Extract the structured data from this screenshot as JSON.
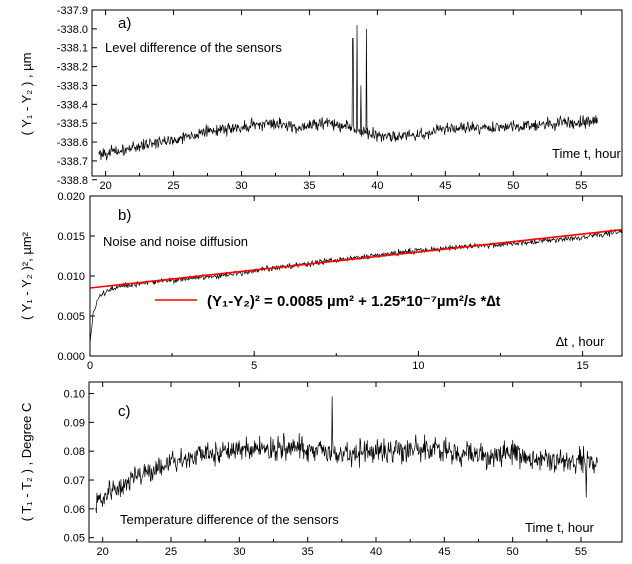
{
  "chart_data": [
    {
      "type": "line",
      "panel_label": "a)",
      "annotation": "Level difference of the sensors",
      "ylabel": "( Y₁ - Y₂ ) , µm",
      "xlabel": "Time  t, hour",
      "xlim": [
        19,
        58
      ],
      "ylim": [
        -338.78,
        -337.9
      ],
      "xticks": [
        20,
        25,
        30,
        35,
        40,
        45,
        50,
        55
      ],
      "yticks": [
        -337.9,
        -338.0,
        -338.1,
        -338.2,
        -338.3,
        -338.4,
        -338.5,
        -338.6,
        -338.7,
        -338.8
      ],
      "ytick_labels": [
        "-337.9",
        "-338.0",
        "-338.1",
        "-338.2",
        "-338.3",
        "-338.4",
        "-338.5",
        "-338.6",
        "-338.7",
        "-338.8"
      ],
      "series": [
        {
          "color": "#000000",
          "x_range": [
            19.5,
            56.2
          ],
          "trend": {
            "x": [
              19.5,
              21,
              23,
              25,
              27,
              29,
              30,
              32,
              34,
              36,
              37,
              38,
              39,
              40,
              41,
              43,
              45,
              48,
              50,
              53,
              56.2
            ],
            "y": [
              -338.66,
              -338.65,
              -338.61,
              -338.59,
              -338.55,
              -338.53,
              -338.52,
              -338.5,
              -338.52,
              -338.5,
              -338.5,
              -338.52,
              -338.55,
              -338.56,
              -338.57,
              -338.56,
              -338.53,
              -338.52,
              -338.52,
              -338.5,
              -338.49
            ]
          },
          "noise_amplitude": 0.032,
          "spikes": [
            {
              "x": 38.2,
              "y": -338.05
            },
            {
              "x": 38.5,
              "y": -337.98
            },
            {
              "x": 38.8,
              "y": -338.3
            },
            {
              "x": 39.2,
              "y": -338.0
            }
          ]
        }
      ]
    },
    {
      "type": "line",
      "panel_label": "b)",
      "annotation": "Noise and noise diffusion",
      "ylabel": "( Y₁ - Y₂ )², µm²",
      "xlabel": "∆t , hour",
      "xlim": [
        0,
        16.2
      ],
      "ylim": [
        0,
        0.02
      ],
      "xticks": [
        0,
        5,
        10,
        15
      ],
      "yticks": [
        0,
        0.005,
        0.01,
        0.015,
        0.02
      ],
      "ytick_labels": [
        "0.000",
        "0.005",
        "0.010",
        "0.015",
        "0.020"
      ],
      "legend": {
        "position": "center",
        "entry_color": "#ff0000",
        "entry_text": "(Y₁-Y₂)² = 0.0085 µm² + 1.25*10⁻⁷µm²/s *∆t"
      },
      "series": [
        {
          "role": "data",
          "color": "#000000",
          "x_range": [
            0,
            16.2
          ],
          "trend": {
            "x": [
              0,
              0.1,
              0.3,
              0.6,
              1,
              2,
              4,
              6,
              8,
              10,
              12,
              14,
              15,
              16.2
            ],
            "y": [
              0.0015,
              0.0055,
              0.0075,
              0.0083,
              0.0087,
              0.0093,
              0.0101,
              0.0112,
              0.0122,
              0.0132,
              0.0138,
              0.0145,
              0.0148,
              0.0156
            ]
          },
          "noise_amplitude": 0.00035
        },
        {
          "role": "fit",
          "color": "#ff0000",
          "intercept": 0.0085,
          "slope_per_hour": 0.00045,
          "x": [
            0,
            16.2
          ]
        }
      ]
    },
    {
      "type": "line",
      "panel_label": "c)",
      "annotation": "Temperature difference of the sensors",
      "ylabel": "( T₁ - T₂ ) , Degree C",
      "xlabel": "Time  t, hour",
      "xlim": [
        19,
        58
      ],
      "ylim": [
        0.0485,
        0.104
      ],
      "xticks": [
        20,
        25,
        30,
        35,
        40,
        45,
        50,
        55
      ],
      "yticks": [
        0.05,
        0.06,
        0.07,
        0.08,
        0.09,
        0.1
      ],
      "ytick_labels": [
        "0.05",
        "0.06",
        "0.07",
        "0.08",
        "0.09",
        "0.10"
      ],
      "series": [
        {
          "color": "#000000",
          "x_range": [
            19.5,
            56.2
          ],
          "trend": {
            "x": [
              19.5,
              20,
              21,
              22,
              23,
              24,
              25,
              27,
              29,
              31,
              33,
              35,
              36,
              37,
              38,
              40,
              42,
              44,
              46,
              48,
              50,
              52,
              54,
              56.2
            ],
            "y": [
              0.062,
              0.064,
              0.067,
              0.07,
              0.072,
              0.074,
              0.076,
              0.078,
              0.08,
              0.081,
              0.081,
              0.081,
              0.08,
              0.079,
              0.079,
              0.08,
              0.081,
              0.081,
              0.079,
              0.078,
              0.079,
              0.077,
              0.077,
              0.076
            ]
          },
          "noise_amplitude": 0.0042,
          "spikes": [
            {
              "x": 36.8,
              "y": 0.099
            },
            {
              "x": 55.4,
              "y": 0.064
            }
          ]
        }
      ]
    }
  ]
}
